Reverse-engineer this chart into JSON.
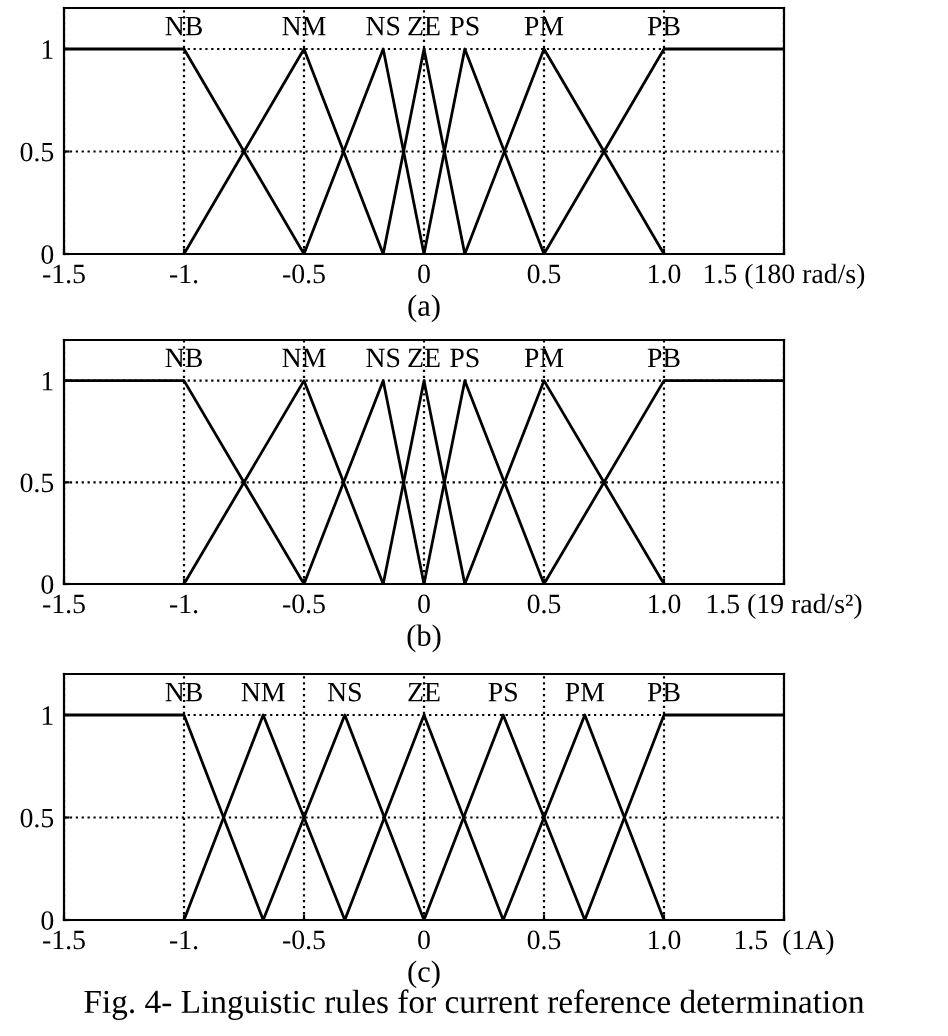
{
  "chart_data": [
    {
      "type": "line",
      "xlabel": "(a)",
      "xlim": [
        -1.5,
        1.5
      ],
      "ylim": [
        0,
        1.2
      ],
      "xticks": [
        -1.5,
        {
          "value": -1,
          "label": "-1."
        },
        -0.5,
        0,
        0.5,
        {
          "value": 1,
          "label": "1.0"
        },
        {
          "value": 1.5,
          "label": "1.5 (180 rad/s)"
        }
      ],
      "yticks": [
        0,
        0.5,
        1
      ],
      "grid": true,
      "marker": "none",
      "line_style": "solid",
      "legend": false,
      "series": [
        {
          "name": "NB",
          "color": "#000000",
          "x": [
            -1.5,
            -1,
            -0.5
          ],
          "values": [
            1,
            1,
            0
          ]
        },
        {
          "name": "NM",
          "color": "#000000",
          "x": [
            -1,
            -0.5,
            -0.17
          ],
          "values": [
            0,
            1,
            0
          ]
        },
        {
          "name": "NS",
          "color": "#000000",
          "x": [
            -0.5,
            -0.17,
            0
          ],
          "values": [
            0,
            1,
            0
          ]
        },
        {
          "name": "ZE",
          "color": "#000000",
          "x": [
            -0.17,
            0,
            0.17
          ],
          "values": [
            0,
            1,
            0
          ]
        },
        {
          "name": "PS",
          "color": "#000000",
          "x": [
            0,
            0.17,
            0.5
          ],
          "values": [
            0,
            1,
            0
          ]
        },
        {
          "name": "PM",
          "color": "#000000",
          "x": [
            0.17,
            0.5,
            1
          ],
          "values": [
            0,
            1,
            0
          ]
        },
        {
          "name": "PB",
          "color": "#000000",
          "x": [
            0.5,
            1,
            1.5
          ],
          "values": [
            0,
            1,
            1
          ]
        }
      ]
    },
    {
      "type": "line",
      "xlabel": "(b)",
      "xlim": [
        -1.5,
        1.5
      ],
      "ylim": [
        0,
        1.2
      ],
      "xticks": [
        -1.5,
        {
          "value": -1,
          "label": "-1."
        },
        -0.5,
        0,
        0.5,
        {
          "value": 1,
          "label": "1.0"
        },
        {
          "value": 1.5,
          "label": "1.5 (19 rad/s²)"
        }
      ],
      "yticks": [
        0,
        0.5,
        1
      ],
      "grid": true,
      "marker": "none",
      "line_style": "solid",
      "legend": false,
      "series": [
        {
          "name": "NB",
          "color": "#000000",
          "x": [
            -1.5,
            -1,
            -0.5
          ],
          "values": [
            1,
            1,
            0
          ]
        },
        {
          "name": "NM",
          "color": "#000000",
          "x": [
            -1,
            -0.5,
            -0.17
          ],
          "values": [
            0,
            1,
            0
          ]
        },
        {
          "name": "NS",
          "color": "#000000",
          "x": [
            -0.5,
            -0.17,
            0
          ],
          "values": [
            0,
            1,
            0
          ]
        },
        {
          "name": "ZE",
          "color": "#000000",
          "x": [
            -0.17,
            0,
            0.17
          ],
          "values": [
            0,
            1,
            0
          ]
        },
        {
          "name": "PS",
          "color": "#000000",
          "x": [
            0,
            0.17,
            0.5
          ],
          "values": [
            0,
            1,
            0
          ]
        },
        {
          "name": "PM",
          "color": "#000000",
          "x": [
            0.17,
            0.5,
            1
          ],
          "values": [
            0,
            1,
            0
          ]
        },
        {
          "name": "PB",
          "color": "#000000",
          "x": [
            0.5,
            1,
            1.5
          ],
          "values": [
            0,
            1,
            1
          ]
        }
      ]
    },
    {
      "type": "line",
      "xlabel": "(c)",
      "xlim": [
        -1.5,
        1.5
      ],
      "ylim": [
        0,
        1.2
      ],
      "xticks": [
        -1.5,
        {
          "value": -1,
          "label": "-1."
        },
        -0.5,
        0,
        0.5,
        {
          "value": 1,
          "label": "1.0"
        },
        {
          "value": 1.5,
          "label": "1.5  (1A)"
        }
      ],
      "yticks": [
        0,
        0.5,
        1
      ],
      "grid": true,
      "marker": "none",
      "line_style": "solid",
      "legend": false,
      "annotations": [
        "Fig. 4- Linguistic rules for current reference determination"
      ],
      "series": [
        {
          "name": "NB",
          "color": "#000000",
          "x": [
            -1.5,
            -1,
            -0.67
          ],
          "values": [
            1,
            1,
            0
          ]
        },
        {
          "name": "NM",
          "color": "#000000",
          "x": [
            -1,
            -0.67,
            -0.33
          ],
          "values": [
            0,
            1,
            0
          ]
        },
        {
          "name": "NS",
          "color": "#000000",
          "x": [
            -0.67,
            -0.33,
            0
          ],
          "values": [
            0,
            1,
            0
          ]
        },
        {
          "name": "ZE",
          "color": "#000000",
          "x": [
            -0.33,
            0,
            0.33
          ],
          "values": [
            0,
            1,
            0
          ]
        },
        {
          "name": "PS",
          "color": "#000000",
          "x": [
            0,
            0.33,
            0.67
          ],
          "values": [
            0,
            1,
            0
          ]
        },
        {
          "name": "PM",
          "color": "#000000",
          "x": [
            0.33,
            0.67,
            1
          ],
          "values": [
            0,
            1,
            0
          ]
        },
        {
          "name": "PB",
          "color": "#000000",
          "x": [
            0.67,
            1,
            1.5
          ],
          "values": [
            0,
            1,
            1
          ]
        }
      ]
    }
  ]
}
